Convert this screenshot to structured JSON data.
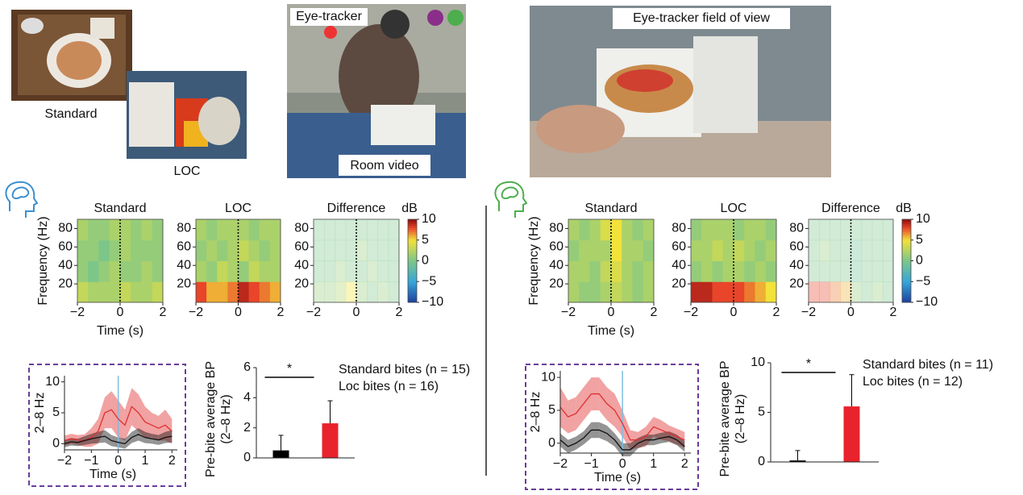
{
  "photos": {
    "standard": "Standard",
    "loc": "LOC",
    "eye_tracker": "Eye-tracker",
    "room_video": "Room video",
    "field_of_view": "Eye-tracker field of view"
  },
  "chart_data": [
    {
      "type": "heatmap",
      "title": "Standard",
      "xlabel": "Time (s)",
      "ylabel": "Frequency (Hz)",
      "xlim": [
        -2,
        2
      ],
      "xticks": [
        {
          "value": -2,
          "label": "−2"
        },
        0,
        2
      ],
      "ylim": [
        0,
        90
      ],
      "yticks": [
        20,
        40,
        60,
        80
      ],
      "zlim": [
        -10,
        10
      ],
      "z": [
        [
          3,
          2,
          2,
          2,
          3,
          2,
          2,
          3
        ],
        [
          1,
          0,
          1,
          2,
          1,
          1,
          2,
          1
        ],
        [
          1,
          1,
          0,
          1,
          2,
          1,
          1,
          1
        ],
        [
          2,
          1,
          1,
          2,
          2,
          1,
          2,
          1
        ]
      ]
    },
    {
      "type": "heatmap",
      "title": "LOC",
      "xlim": [
        -2,
        2
      ],
      "xticks": [
        {
          "value": -2,
          "label": "−2"
        },
        0,
        2
      ],
      "ylim": [
        0,
        90
      ],
      "yticks": [
        20,
        40,
        60,
        80
      ],
      "zlim": [
        -10,
        10
      ],
      "z": [
        [
          8,
          6,
          6,
          7,
          9,
          8,
          7,
          6
        ],
        [
          2,
          1,
          3,
          2,
          1,
          3,
          2,
          2
        ],
        [
          1,
          2,
          1,
          2,
          3,
          2,
          1,
          2
        ],
        [
          2,
          1,
          2,
          2,
          2,
          1,
          2,
          2
        ]
      ]
    },
    {
      "type": "heatmap",
      "title": "Difference",
      "xlim": [
        -2,
        2
      ],
      "xticks": [
        {
          "value": -2,
          "label": "−2"
        },
        0,
        2
      ],
      "ylim": [
        0,
        90
      ],
      "yticks": [
        20,
        40,
        60,
        80
      ],
      "zlim": [
        -10,
        10
      ],
      "z": [
        [
          1,
          1,
          2,
          5,
          1,
          0,
          1,
          0
        ],
        [
          0,
          0,
          1,
          0,
          0,
          1,
          0,
          0
        ],
        [
          0,
          0,
          0,
          0,
          1,
          0,
          0,
          0
        ],
        [
          0,
          0,
          0,
          0,
          0,
          0,
          0,
          0
        ]
      ],
      "colorbar": {
        "label": "dB",
        "ticks": [
          10,
          5,
          0,
          {
            "value": -5,
            "label": "−5"
          },
          {
            "value": -10,
            "label": "−10"
          }
        ]
      }
    },
    {
      "type": "heatmap",
      "title": "Standard",
      "xlabel": "Time (s)",
      "ylabel": "Frequency (Hz)",
      "xlim": [
        -2,
        2
      ],
      "xticks": [
        {
          "value": -2,
          "label": "−2"
        },
        0,
        2
      ],
      "ylim": [
        0,
        90
      ],
      "yticks": [
        20,
        40,
        60,
        80
      ],
      "zlim": [
        -10,
        10
      ],
      "z": [
        [
          2,
          1,
          1,
          2,
          3,
          2,
          1,
          2
        ],
        [
          2,
          2,
          1,
          3,
          4,
          2,
          1,
          2
        ],
        [
          1,
          2,
          2,
          2,
          5,
          2,
          2,
          1
        ],
        [
          2,
          1,
          2,
          4,
          5,
          2,
          1,
          2
        ]
      ]
    },
    {
      "type": "heatmap",
      "title": "LOC",
      "xlim": [
        -2,
        2
      ],
      "xticks": [
        {
          "value": -2,
          "label": "−2"
        },
        0,
        2
      ],
      "ylim": [
        0,
        90
      ],
      "yticks": [
        20,
        40,
        60,
        80
      ],
      "zlim": [
        -10,
        10
      ],
      "z": [
        [
          9,
          9,
          8,
          8,
          8,
          7,
          6,
          5
        ],
        [
          1,
          2,
          1,
          2,
          2,
          1,
          2,
          1
        ],
        [
          2,
          2,
          3,
          2,
          3,
          2,
          1,
          2
        ],
        [
          1,
          2,
          2,
          2,
          1,
          2,
          2,
          1
        ]
      ]
    },
    {
      "type": "heatmap",
      "title": "Difference",
      "xlim": [
        -2,
        2
      ],
      "xticks": [
        {
          "value": -2,
          "label": "−2"
        },
        0,
        2
      ],
      "ylim": [
        0,
        90
      ],
      "yticks": [
        20,
        40,
        60,
        80
      ],
      "zlim": [
        -10,
        10
      ],
      "z": [
        [
          8,
          8,
          7,
          6,
          1,
          0,
          1,
          0
        ],
        [
          0,
          0,
          0,
          0,
          -1,
          0,
          0,
          0
        ],
        [
          0,
          1,
          0,
          0,
          -1,
          0,
          0,
          0
        ],
        [
          0,
          0,
          0,
          0,
          0,
          0,
          0,
          0
        ]
      ],
      "colorbar": {
        "label": "dB",
        "ticks": [
          10,
          5,
          0,
          {
            "value": -5,
            "label": "−5"
          },
          {
            "value": -10,
            "label": "−10"
          }
        ]
      }
    },
    {
      "type": "line",
      "xlabel": "Time (s)",
      "ylabel": "2–8 Hz",
      "xlim": [
        -2,
        2.2
      ],
      "xticks": [
        {
          "value": -2,
          "label": "−2"
        },
        {
          "value": -1,
          "label": "−1"
        },
        0,
        1,
        2
      ],
      "ylim": [
        -1,
        11
      ],
      "yticks": [
        0,
        5,
        10
      ],
      "x": [
        -2,
        -1.75,
        -1.5,
        -1.25,
        -1,
        -0.75,
        -0.5,
        -0.25,
        0,
        0.25,
        0.5,
        0.75,
        1,
        1.25,
        1.5,
        1.75,
        2
      ],
      "series": [
        {
          "color": "#e03030",
          "values": [
            0.5,
            0.8,
            0.6,
            0.5,
            1,
            2,
            5,
            5.5,
            4,
            3,
            6,
            5,
            3.5,
            3,
            2.5,
            3,
            2
          ],
          "errors": [
            0.8,
            0.8,
            0.8,
            1,
            1.5,
            2,
            2.5,
            3,
            3,
            2.5,
            3,
            3,
            2.5,
            2,
            2,
            2.5,
            2
          ]
        },
        {
          "color": "#111111",
          "values": [
            0,
            0.3,
            0.2,
            0.5,
            0.8,
            1,
            1.2,
            0.5,
            0.2,
            0,
            1,
            1.5,
            1,
            0.8,
            0.6,
            1,
            1.2
          ],
          "errors": [
            0.6,
            0.6,
            0.6,
            0.7,
            0.8,
            0.9,
            1,
            0.9,
            0.8,
            0.8,
            0.9,
            1,
            0.9,
            0.8,
            0.8,
            0.9,
            1
          ]
        }
      ]
    },
    {
      "type": "bar",
      "ylabel": [
        "Pre-bite average BP",
        "(2–8 Hz)"
      ],
      "ylim": [
        0,
        6
      ],
      "yticks": [
        0,
        2,
        4,
        6
      ],
      "annotation": "*",
      "series": [
        {
          "name": "Standard bites (n = 15)",
          "color": "#000000",
          "values": [
            0.5
          ],
          "errors": [
            1.0
          ]
        },
        {
          "name": "Loc bites (n = 16)",
          "color": "#e8232b",
          "values": [
            2.3
          ],
          "errors": [
            1.5
          ]
        }
      ]
    },
    {
      "type": "line",
      "xlabel": "Time (s)",
      "ylabel": "2–8 Hz",
      "xlim": [
        -2,
        2.2
      ],
      "xticks": [
        {
          "value": -2,
          "label": "−2"
        },
        {
          "value": -1,
          "label": "−1"
        },
        0,
        1,
        2
      ],
      "ylim": [
        -1.5,
        11
      ],
      "yticks": [
        0,
        5,
        10
      ],
      "x": [
        -2,
        -1.75,
        -1.5,
        -1.25,
        -1,
        -0.75,
        -0.5,
        -0.25,
        0,
        0.25,
        0.5,
        0.75,
        1,
        1.25,
        1.5,
        1.75,
        2
      ],
      "series": [
        {
          "color": "#e03030",
          "values": [
            5.5,
            4,
            4.5,
            6,
            7.5,
            7.5,
            6,
            5,
            3,
            0.5,
            0.5,
            1,
            2.5,
            2,
            1.5,
            1,
            0.5
          ],
          "errors": [
            3,
            2.5,
            2.5,
            2.5,
            2.5,
            2.5,
            2.5,
            2.5,
            2,
            1.5,
            1.2,
            1.5,
            1.5,
            1.5,
            1.2,
            1.2,
            1.2
          ]
        },
        {
          "color": "#111111",
          "values": [
            0.5,
            -0.5,
            0,
            0.8,
            2,
            2,
            1.5,
            0.5,
            -1,
            -1,
            0,
            0.5,
            0.5,
            0.8,
            1,
            0.5,
            -0.5
          ],
          "errors": [
            1,
            1,
            1,
            1,
            1.2,
            1.2,
            1.2,
            1,
            1,
            1,
            0.8,
            0.8,
            0.8,
            0.8,
            0.8,
            0.8,
            0.8
          ]
        }
      ]
    },
    {
      "type": "bar",
      "ylabel": [
        "Pre-bite average BP",
        "(2–8 Hz)"
      ],
      "ylim": [
        0,
        10
      ],
      "yticks": [
        0,
        5,
        10
      ],
      "annotation": "*",
      "series": [
        {
          "name": "Standard bites (n = 11)",
          "color": "#000000",
          "values": [
            0.15
          ],
          "errors": [
            1.0
          ]
        },
        {
          "name": "Loc bites (n = 12)",
          "color": "#e8232b",
          "values": [
            5.6
          ],
          "errors": [
            3.2
          ]
        }
      ]
    }
  ]
}
